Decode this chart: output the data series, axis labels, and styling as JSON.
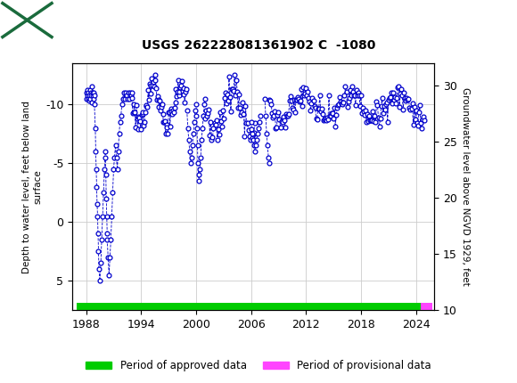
{
  "title": "USGS 262228081361902 C  -1080",
  "ylabel_left": "Depth to water level, feet below land\nsurface",
  "ylabel_right": "Groundwater level above NGVD 1929, feet",
  "ylim_left": [
    7.5,
    -13.5
  ],
  "ylim_right": [
    10,
    32
  ],
  "xlim": [
    1986.5,
    2026.0
  ],
  "xticks": [
    1988,
    1994,
    2000,
    2006,
    2012,
    2018,
    2024
  ],
  "yticks_left": [
    5,
    0,
    -5,
    -10
  ],
  "yticks_right": [
    10,
    15,
    20,
    25,
    30
  ],
  "header_color": "#1a6b3c",
  "plot_bg": "#ffffff",
  "grid_color": "#cccccc",
  "data_color": "#0000cc",
  "approved_color": "#00cc00",
  "provisional_color": "#ff44ff",
  "legend_approved": "Period of approved data",
  "legend_provisional": "Period of provisional data",
  "approved_start": 1987.0,
  "approved_end": 2024.5,
  "provisional_start": 2024.5,
  "provisional_end": 2025.8
}
